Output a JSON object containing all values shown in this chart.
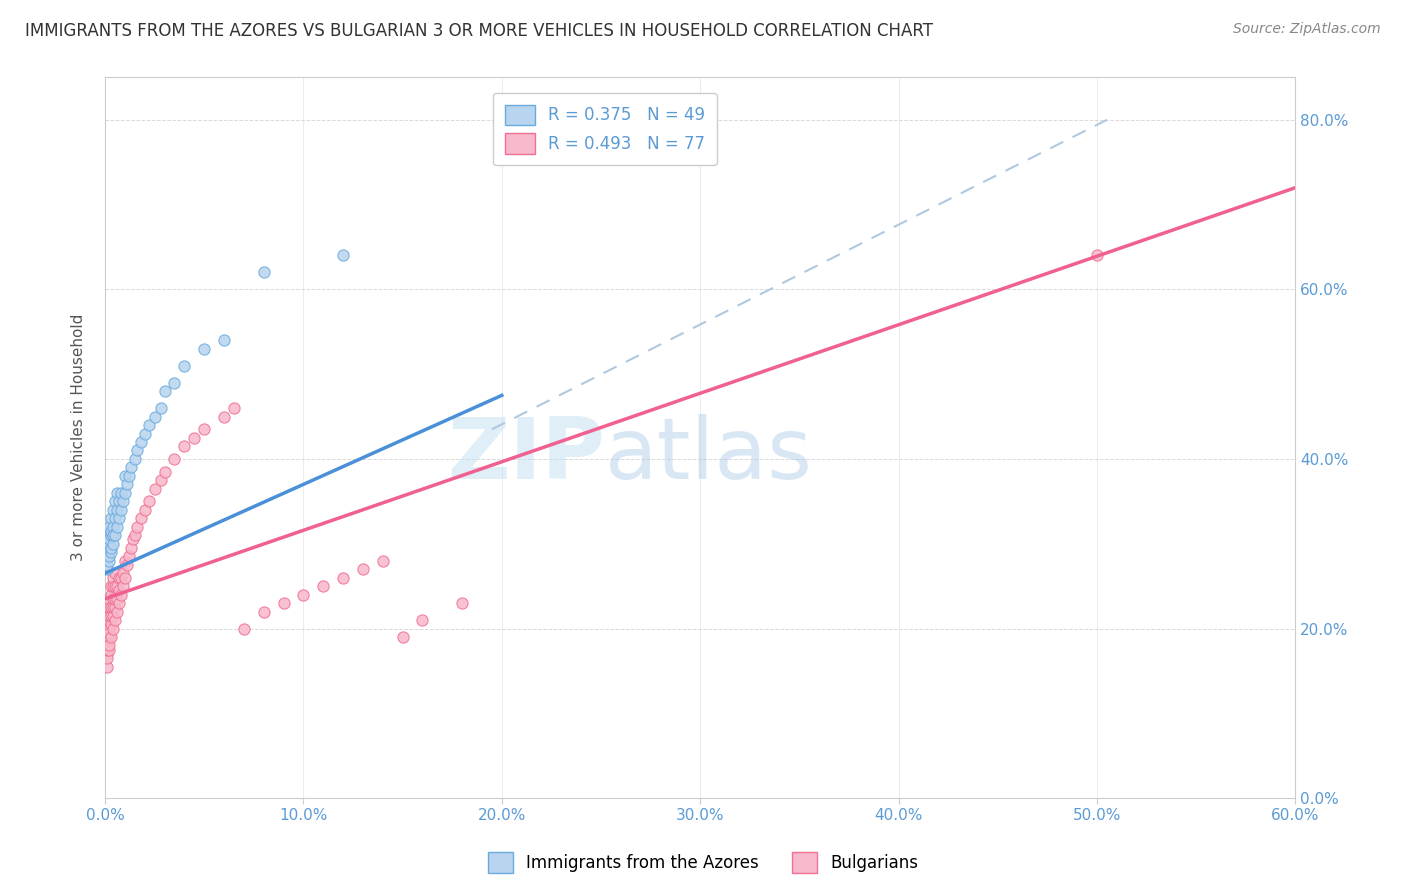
{
  "title": "IMMIGRANTS FROM THE AZORES VS BULGARIAN 3 OR MORE VEHICLES IN HOUSEHOLD CORRELATION CHART",
  "source": "Source: ZipAtlas.com",
  "legend_label1": "Immigrants from the Azores",
  "legend_label2": "Bulgarians",
  "R1": 0.375,
  "N1": 49,
  "R2": 0.493,
  "N2": 77,
  "color_azores_fill": "#b8d4ee",
  "color_azores_edge": "#6aabdf",
  "color_bulgarians_fill": "#f8b8cb",
  "color_bulgarians_edge": "#f07090",
  "color_azores_line": "#4a90d9",
  "color_bulgarians_line": "#f06090",
  "color_dashed": "#b0c8e0",
  "xlim": [
    0.0,
    0.6
  ],
  "ylim": [
    0.0,
    0.85
  ],
  "watermark_zip": "ZIP",
  "watermark_atlas": "atlas",
  "azores_x": [
    0.001,
    0.001,
    0.001,
    0.001,
    0.001,
    0.002,
    0.002,
    0.002,
    0.002,
    0.002,
    0.003,
    0.003,
    0.003,
    0.003,
    0.003,
    0.004,
    0.004,
    0.004,
    0.004,
    0.005,
    0.005,
    0.005,
    0.006,
    0.006,
    0.006,
    0.007,
    0.007,
    0.008,
    0.008,
    0.009,
    0.01,
    0.01,
    0.011,
    0.012,
    0.013,
    0.015,
    0.016,
    0.018,
    0.02,
    0.022,
    0.025,
    0.028,
    0.03,
    0.035,
    0.04,
    0.05,
    0.06,
    0.08,
    0.12
  ],
  "azores_y": [
    0.27,
    0.29,
    0.31,
    0.275,
    0.295,
    0.28,
    0.3,
    0.32,
    0.285,
    0.305,
    0.29,
    0.31,
    0.33,
    0.295,
    0.315,
    0.3,
    0.32,
    0.34,
    0.31,
    0.31,
    0.33,
    0.35,
    0.32,
    0.34,
    0.36,
    0.33,
    0.35,
    0.34,
    0.36,
    0.35,
    0.36,
    0.38,
    0.37,
    0.38,
    0.39,
    0.4,
    0.41,
    0.42,
    0.43,
    0.44,
    0.45,
    0.46,
    0.48,
    0.49,
    0.51,
    0.53,
    0.54,
    0.62,
    0.64
  ],
  "bulgarians_x": [
    0.001,
    0.001,
    0.001,
    0.001,
    0.001,
    0.001,
    0.001,
    0.001,
    0.001,
    0.001,
    0.002,
    0.002,
    0.002,
    0.002,
    0.002,
    0.002,
    0.002,
    0.002,
    0.003,
    0.003,
    0.003,
    0.003,
    0.003,
    0.003,
    0.004,
    0.004,
    0.004,
    0.004,
    0.004,
    0.004,
    0.005,
    0.005,
    0.005,
    0.005,
    0.005,
    0.006,
    0.006,
    0.006,
    0.007,
    0.007,
    0.007,
    0.008,
    0.008,
    0.009,
    0.009,
    0.01,
    0.01,
    0.011,
    0.012,
    0.013,
    0.014,
    0.015,
    0.016,
    0.018,
    0.02,
    0.022,
    0.025,
    0.028,
    0.03,
    0.035,
    0.04,
    0.045,
    0.05,
    0.06,
    0.065,
    0.07,
    0.08,
    0.09,
    0.1,
    0.11,
    0.12,
    0.13,
    0.14,
    0.15,
    0.16,
    0.18,
    0.5
  ],
  "bulgarians_y": [
    0.155,
    0.17,
    0.185,
    0.195,
    0.21,
    0.22,
    0.165,
    0.175,
    0.19,
    0.2,
    0.175,
    0.19,
    0.2,
    0.215,
    0.225,
    0.235,
    0.18,
    0.195,
    0.19,
    0.205,
    0.215,
    0.225,
    0.24,
    0.25,
    0.2,
    0.215,
    0.225,
    0.235,
    0.25,
    0.26,
    0.21,
    0.225,
    0.235,
    0.25,
    0.265,
    0.22,
    0.235,
    0.25,
    0.23,
    0.245,
    0.26,
    0.24,
    0.26,
    0.25,
    0.265,
    0.26,
    0.28,
    0.275,
    0.285,
    0.295,
    0.305,
    0.31,
    0.32,
    0.33,
    0.34,
    0.35,
    0.365,
    0.375,
    0.385,
    0.4,
    0.415,
    0.425,
    0.435,
    0.45,
    0.46,
    0.2,
    0.22,
    0.23,
    0.24,
    0.25,
    0.26,
    0.27,
    0.28,
    0.19,
    0.21,
    0.23,
    0.64
  ],
  "azores_line_x": [
    0.0,
    0.2
  ],
  "azores_line_y": [
    0.265,
    0.475
  ],
  "bulgarians_line_x": [
    0.0,
    0.6
  ],
  "bulgarians_line_y": [
    0.235,
    0.72
  ],
  "dashed_line_x": [
    0.195,
    0.505
  ],
  "dashed_line_y": [
    0.435,
    0.8
  ]
}
